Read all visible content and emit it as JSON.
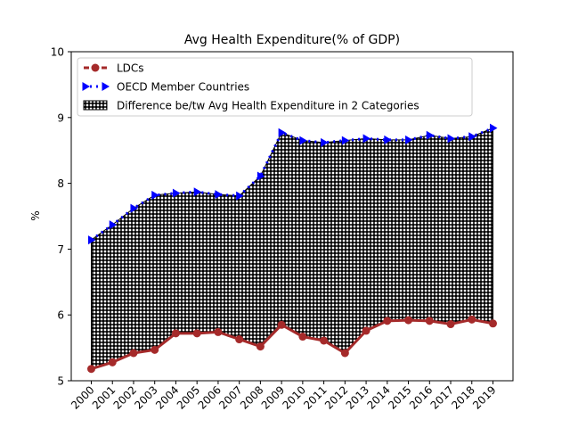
{
  "chart_data": {
    "type": "line",
    "title": "Avg Health Expenditure(% of GDP)",
    "xlabel": "",
    "ylabel": "%",
    "categories": [
      "2000",
      "2001",
      "2002",
      "2003",
      "2004",
      "2005",
      "2006",
      "2007",
      "2008",
      "2009",
      "2010",
      "2011",
      "2012",
      "2013",
      "2014",
      "2015",
      "2016",
      "2017",
      "2018",
      "2019"
    ],
    "ylim": [
      5,
      10
    ],
    "yticks": [
      5,
      6,
      7,
      8,
      9,
      10
    ],
    "legend_position": "top-left",
    "series": [
      {
        "name": "LDCs",
        "color": "#a52a2a",
        "marker": "circle",
        "values": [
          5.18,
          5.28,
          5.42,
          5.47,
          5.72,
          5.72,
          5.74,
          5.63,
          5.52,
          5.85,
          5.67,
          5.61,
          5.42,
          5.76,
          5.91,
          5.92,
          5.91,
          5.86,
          5.93,
          5.87
        ]
      },
      {
        "name": "OECD Member Countries",
        "color": "#0000ff",
        "marker": "triangle-right",
        "values": [
          7.14,
          7.37,
          7.62,
          7.82,
          7.85,
          7.87,
          7.83,
          7.81,
          8.11,
          8.77,
          8.65,
          8.62,
          8.65,
          8.68,
          8.66,
          8.66,
          8.73,
          8.68,
          8.71,
          8.84
        ]
      }
    ],
    "fill_label": "Difference be/tw Avg Health Expenditure in 2 Categories"
  }
}
